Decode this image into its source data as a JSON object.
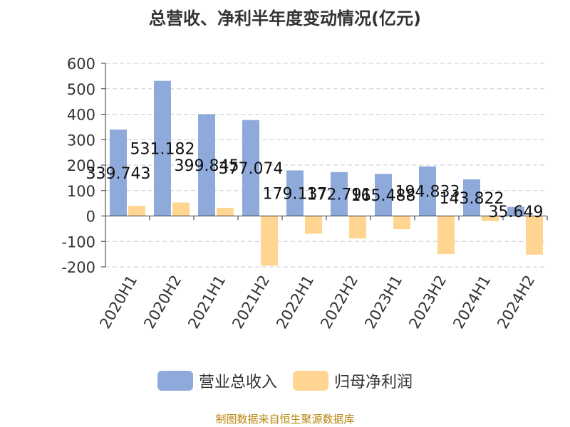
{
  "chart_data": {
    "type": "bar",
    "title": "总营收、净利半年度变动情况(亿元)",
    "categories": [
      "2020H1",
      "2020H2",
      "2021H1",
      "2021H2",
      "2022H1",
      "2022H2",
      "2023H1",
      "2023H2",
      "2024H1",
      "2024H2"
    ],
    "series": [
      {
        "name": "营业总收入",
        "values": [
          339.743,
          531.182,
          399.845,
          377.074,
          179.137,
          172.791,
          165.488,
          194.833,
          143.822,
          35.649
        ],
        "color": "#8eaadb"
      },
      {
        "name": "归母净利润",
        "values": [
          40,
          53,
          32,
          -195,
          -70,
          -88,
          -52,
          -150,
          -20,
          -152
        ],
        "color": "#ffd591"
      }
    ],
    "ylim": [
      -200,
      600
    ],
    "yticks": [
      600,
      500,
      400,
      300,
      200,
      100,
      0,
      -100,
      -200
    ],
    "grid": true,
    "legend_position": "bottom"
  },
  "source": "制图数据来自恒生聚源数据库"
}
